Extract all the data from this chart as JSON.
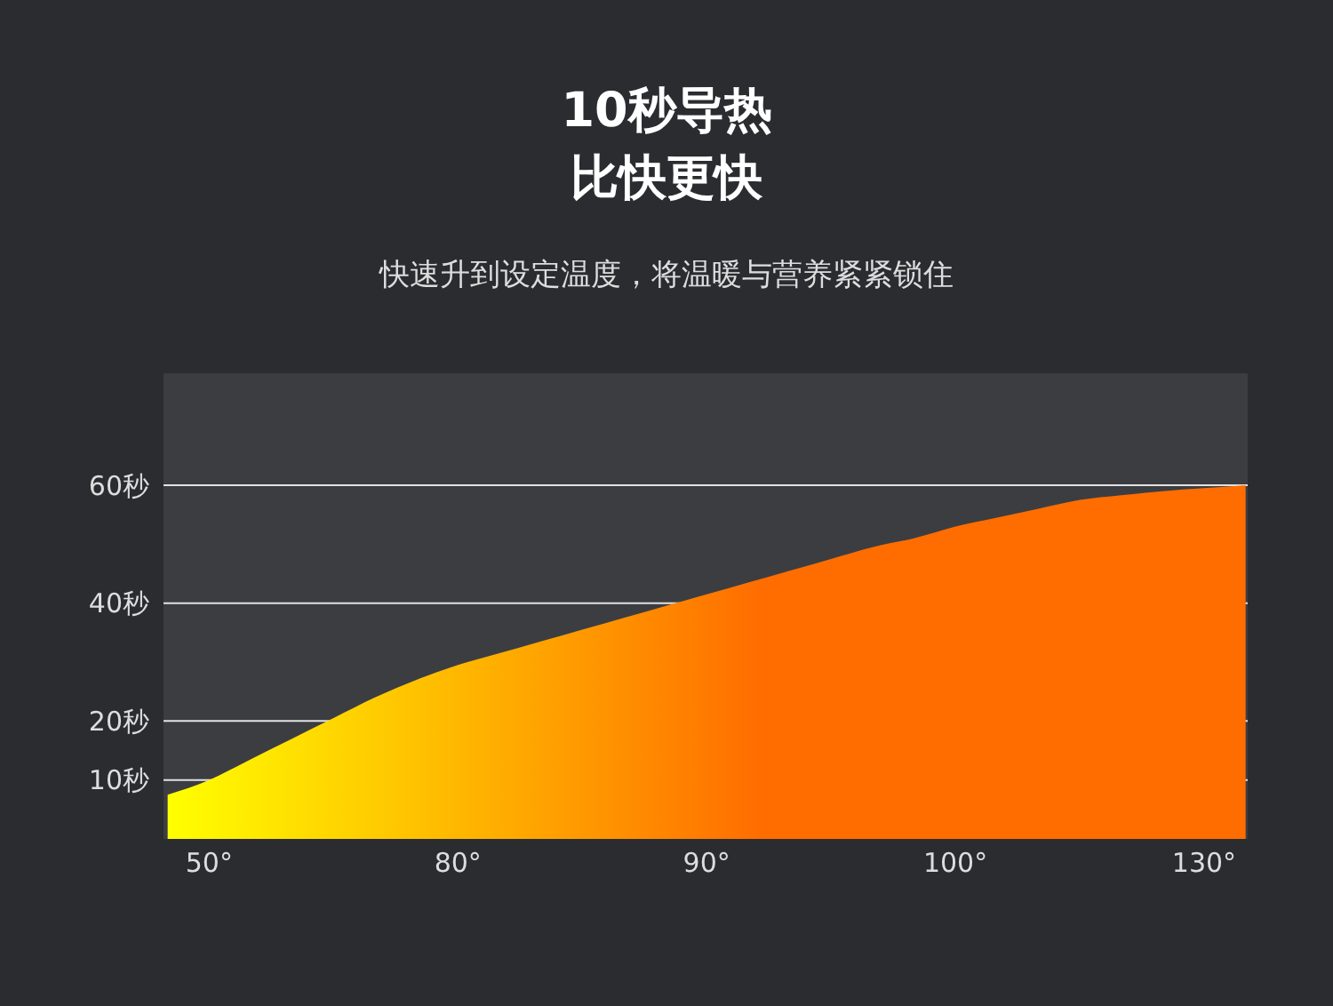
{
  "chart_data": {
    "type": "area",
    "title": "10秒导热",
    "subtitle": "比快更快",
    "annotations": [
      "快速升到设定温度，将温暖与营养紧紧锁住"
    ],
    "categories": [
      null,
      "50°",
      null,
      null,
      null,
      null,
      null,
      "80°",
      null,
      null,
      null,
      null,
      null,
      "90°",
      null,
      null,
      null,
      null,
      null,
      "100°",
      null,
      null,
      null,
      null,
      null,
      "130°",
      null
    ],
    "series": [
      {
        "color": "#ff6d00",
        "values": [
          7.5,
          10,
          13.5,
          17,
          20.5,
          24,
          27,
          29.5,
          31.5,
          33.5,
          35.5,
          37.5,
          39.5,
          41.5,
          43.5,
          45.5,
          47.5,
          49.5,
          51,
          53,
          54.5,
          56,
          57.5,
          58.3,
          59,
          59.5,
          60
        ]
      }
    ],
    "ylim": [
      0,
      79
    ],
    "yticks": [
      {
        "value": 10,
        "label": "10秒"
      },
      {
        "value": 20,
        "label": "20秒"
      },
      {
        "value": 40,
        "label": "40秒"
      },
      {
        "value": 60,
        "label": "60秒"
      }
    ],
    "grid": "y"
  }
}
